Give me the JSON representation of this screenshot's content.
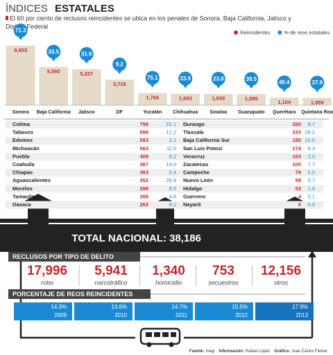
{
  "header": {
    "title_light": "ÍNDICES",
    "title_bold": "ESTATALES",
    "subtitle_lines": [
      "El 60 por ciento de reclusos reincidentes se ubica en los penales de Sonora, Baja California, Jalisco y",
      "Distrito Federal"
    ]
  },
  "chart_data": {
    "type": "bar",
    "categories": [
      "Sonora",
      "Baja California",
      "Jalisco",
      "DF",
      "Yucatán",
      "Chihuahua",
      "Sinaloa",
      "Guanajuato",
      "Querétaro",
      "Quintana Roo"
    ],
    "series": [
      {
        "name": "Reincidentes",
        "color": "#c4262e",
        "values": [
          8653,
          5560,
          5227,
          3716,
          1766,
          1663,
          1639,
          1595,
          1104,
          1069
        ],
        "value_labels": [
          "8,653",
          "5,560",
          "5,227",
          "3,716",
          "1,766",
          "1,663",
          "1,639",
          "1,595",
          "1,104",
          "1,069"
        ]
      },
      {
        "name": "% de reos estatales",
        "color": "#1a8ad4",
        "values": [
          71.3,
          33.5,
          31.6,
          9.2,
          75.1,
          23.9,
          23.8,
          39.5,
          40.4,
          37.9
        ]
      }
    ]
  },
  "table": {
    "columns": [
      [
        [
          "Colima",
          "798",
          "22.1"
        ],
        [
          "Tabasco",
          "598",
          "12.2"
        ],
        [
          "Edomex",
          "593",
          "3.1"
        ],
        [
          "Michoacán",
          "563",
          "11.5"
        ],
        [
          "Puebla",
          "408",
          "8.2"
        ],
        [
          "Coahuila",
          "367",
          "14.0"
        ],
        [
          "Chiapas",
          "363",
          "5.4"
        ],
        [
          "Aguascalientes",
          "352",
          "25.9"
        ],
        [
          "Morelos",
          "298",
          "8.5"
        ],
        [
          "Tamaulipas",
          "288",
          "4.8"
        ],
        [
          "Oaxaca",
          "262",
          "6.1"
        ]
      ],
      [
        [
          "Durango",
          "260",
          "8.7"
        ],
        [
          "Tlaxcala",
          "233",
          "28.2"
        ],
        [
          "Baja California Sur",
          "180",
          "10.0"
        ],
        [
          "San Luis Potosí",
          "174",
          "5.3"
        ],
        [
          "Veracruz",
          "163",
          "2.0"
        ],
        [
          "Zacatecas",
          "100",
          "7.7"
        ],
        [
          "Campeche",
          "79",
          "5.0"
        ],
        [
          "Nuevo León",
          "58",
          "0.7"
        ],
        [
          "Hidalgo",
          "53",
          "1.6"
        ],
        [
          "Guerrero",
          "4",
          "0.1"
        ],
        [
          "Nayarit",
          "0",
          "0.0"
        ]
      ]
    ]
  },
  "total": {
    "label": "TOTAL NACIONAL:",
    "value": "38,186"
  },
  "crimes": {
    "title": "RECLUSOS POR TIPO DE DELITO",
    "items": [
      {
        "value": "17,996",
        "label": "robo"
      },
      {
        "value": "5,941",
        "label": "narcotráfico"
      },
      {
        "value": "1,340",
        "label": "homicidio"
      },
      {
        "value": "753",
        "label": "secuestros"
      },
      {
        "value": "12,156",
        "label": "otros"
      }
    ]
  },
  "recidivism": {
    "title": "PORCENTAJE DE REOS REINCIDENTES",
    "items": [
      {
        "pct": "14.3%",
        "year": "2009"
      },
      {
        "pct": "13.6%",
        "year": "2010"
      },
      {
        "pct": "14.7%",
        "year": "2011"
      },
      {
        "pct": "15.5%",
        "year": "2012"
      },
      {
        "pct": "17.9%",
        "year": "2013"
      }
    ]
  },
  "footer": [
    "Fuente:",
    "Inegi",
    "Información:",
    "Rafael López",
    "Gráfico:",
    "Juan Carlos Fleicer"
  ]
}
